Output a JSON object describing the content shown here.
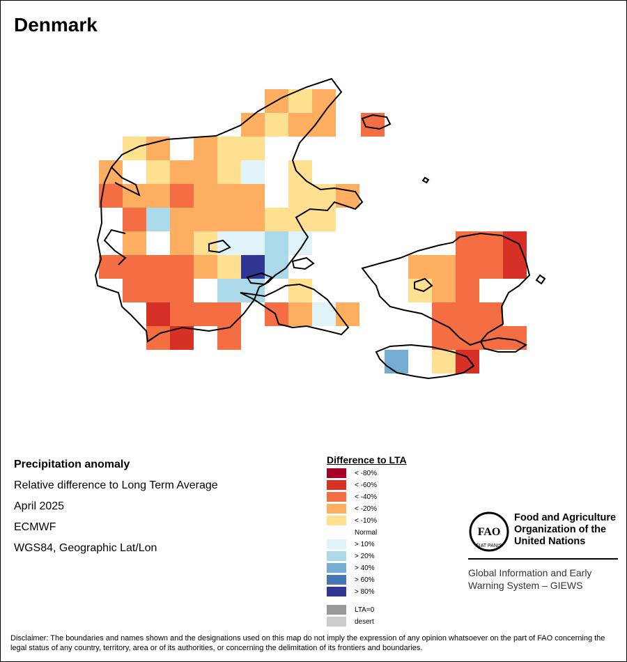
{
  "title": "Denmark",
  "info": {
    "heading": "Precipitation anomaly",
    "subtitle": "Relative difference to Long Term Average",
    "period": "April 2025",
    "source": "ECMWF",
    "projection": "WGS84, Geographic Lat/Lon"
  },
  "legend": {
    "title": "Difference to LTA",
    "items": [
      {
        "label": "< -80%",
        "color": "#a50026"
      },
      {
        "label": "< -60%",
        "color": "#d73027"
      },
      {
        "label": "< -40%",
        "color": "#f46d43"
      },
      {
        "label": "< -20%",
        "color": "#fdae61"
      },
      {
        "label": "< -10%",
        "color": "#fee090"
      },
      {
        "label": "Normal",
        "color": "#ffffff"
      },
      {
        "label": "> 10%",
        "color": "#e0f3f8"
      },
      {
        "label": "> 20%",
        "color": "#abd9e9"
      },
      {
        "label": "> 40%",
        "color": "#74add1"
      },
      {
        "label": "> 60%",
        "color": "#4575b4"
      },
      {
        "label": "> 80%",
        "color": "#313695"
      },
      {
        "label": "LTA=0",
        "color": "#999999"
      },
      {
        "label": "desert",
        "color": "#cccccc"
      }
    ]
  },
  "logo": {
    "org_name": "Food and Agriculture Organization of the United Nations",
    "emblem_text": "FAO",
    "motto": "FIAT PANIS",
    "program": "Global Information and Early Warning System – GIEWS"
  },
  "disclaimer": "Disclaimer: The boundaries and names shown and the designations used on this map do not imply the expression of any opinion whatsoever on the part of FAO concerning the legal status of any country, territory, area or of its authorities, or concerning the delimitation of its frontiers and boundaries.",
  "colors": {
    "lt80": "#a50026",
    "lt60": "#d73027",
    "lt40": "#f46d43",
    "lt20": "#fdae61",
    "lt10": "#fee090",
    "gt10": "#e0f3f8",
    "gt20": "#abd9e9",
    "gt40": "#74add1",
    "gt80": "#313695"
  }
}
